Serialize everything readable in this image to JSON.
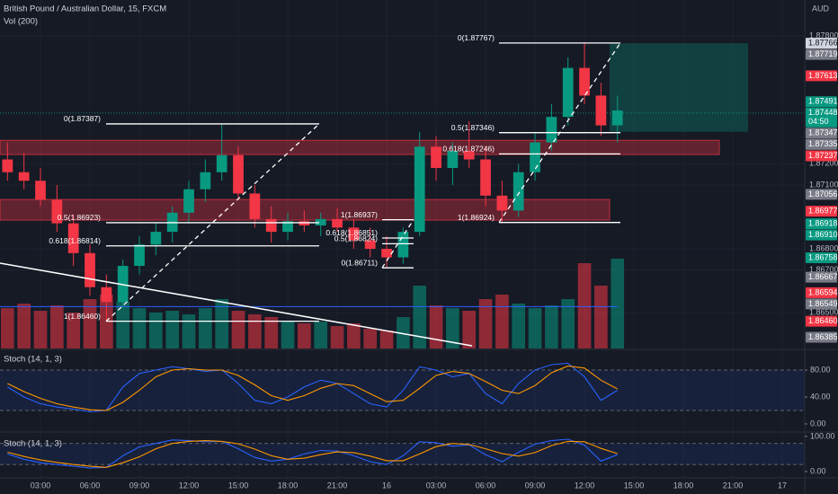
{
  "header": {
    "symbol": "British Pound / Australian Dollar, 15, FXCM",
    "volume": "Vol (200)",
    "currency": "AUD"
  },
  "chart_data": [
    {
      "type": "candlestick",
      "x": [
        1,
        2,
        3,
        4,
        5,
        6,
        7,
        8,
        9,
        10,
        11,
        12,
        13,
        14,
        15,
        16,
        17,
        18,
        19,
        20,
        21,
        22,
        23,
        24,
        25,
        26,
        27,
        28,
        29,
        30,
        31,
        32,
        33,
        34,
        35,
        36,
        37,
        38
      ],
      "open": [
        1.8722,
        1.8716,
        1.8712,
        1.8703,
        1.8692,
        1.8678,
        1.8662,
        1.8655,
        1.8672,
        1.8682,
        1.8688,
        1.8697,
        1.8708,
        1.8716,
        1.8724,
        1.8706,
        1.8694,
        1.8688,
        1.8693,
        1.8691,
        1.8694,
        1.869,
        1.8684,
        1.868,
        1.8676,
        1.8688,
        1.8728,
        1.8718,
        1.8726,
        1.8722,
        1.8705,
        1.8698,
        1.8716,
        1.873,
        1.8742,
        1.8765,
        1.8752,
        1.8738
      ],
      "high": [
        1.873,
        1.8725,
        1.8718,
        1.871,
        1.8696,
        1.8682,
        1.8668,
        1.8675,
        1.8686,
        1.8692,
        1.87,
        1.8712,
        1.8722,
        1.8739,
        1.8728,
        1.871,
        1.87,
        1.8697,
        1.8698,
        1.8697,
        1.8699,
        1.8694,
        1.869,
        1.8686,
        1.869,
        1.8735,
        1.8733,
        1.873,
        1.874,
        1.8728,
        1.8712,
        1.872,
        1.8735,
        1.8748,
        1.877,
        1.8777,
        1.8758,
        1.8752
      ],
      "low": [
        1.8712,
        1.8708,
        1.87,
        1.8688,
        1.8672,
        1.8658,
        1.8646,
        1.8652,
        1.8668,
        1.8677,
        1.8683,
        1.8692,
        1.8702,
        1.8712,
        1.8703,
        1.869,
        1.8683,
        1.8684,
        1.8688,
        1.8686,
        1.8688,
        1.868,
        1.8676,
        1.8671,
        1.8673,
        1.8686,
        1.8712,
        1.871,
        1.8718,
        1.87,
        1.8692,
        1.8695,
        1.8712,
        1.8726,
        1.8738,
        1.8748,
        1.8733,
        1.873
      ],
      "close": [
        1.8716,
        1.8712,
        1.8703,
        1.8692,
        1.8678,
        1.8662,
        1.8655,
        1.8672,
        1.8682,
        1.8688,
        1.8697,
        1.8708,
        1.8716,
        1.8724,
        1.8706,
        1.8694,
        1.8688,
        1.8693,
        1.8691,
        1.8694,
        1.869,
        1.8684,
        1.868,
        1.8676,
        1.8688,
        1.8728,
        1.8718,
        1.8726,
        1.8722,
        1.8705,
        1.8698,
        1.8716,
        1.873,
        1.8742,
        1.8765,
        1.8752,
        1.8738,
        1.8745
      ],
      "volume": [
        45,
        50,
        42,
        48,
        40,
        55,
        60,
        52,
        45,
        40,
        42,
        38,
        45,
        55,
        42,
        38,
        35,
        30,
        28,
        30,
        25,
        28,
        22,
        20,
        35,
        70,
        48,
        45,
        42,
        55,
        60,
        50,
        45,
        48,
        55,
        95,
        70,
        100
      ],
      "vlim": [
        0,
        120
      ],
      "up_color": "#089981",
      "down_color": "#f23645",
      "xlim": [
        0.545,
        49.36
      ],
      "xticks": [
        {
          "value": 3,
          "label": "03:00"
        },
        {
          "value": 6,
          "label": "06:00"
        },
        {
          "value": 9,
          "label": "09:00"
        },
        {
          "value": 12,
          "label": "12:00"
        },
        {
          "value": 15,
          "label": "15:00"
        },
        {
          "value": 18,
          "label": "18:00"
        },
        {
          "value": 21,
          "label": "21:00"
        },
        {
          "value": 24,
          "label": "16"
        },
        {
          "value": 27,
          "label": "03:00"
        },
        {
          "value": 30,
          "label": "06:00"
        },
        {
          "value": 33,
          "label": "09:00"
        },
        {
          "value": 36,
          "label": "12:00"
        },
        {
          "value": 39,
          "label": "15:00"
        },
        {
          "value": 42,
          "label": "18:00"
        },
        {
          "value": 45,
          "label": "21:00"
        },
        {
          "value": 48,
          "label": "17"
        }
      ],
      "ylim": [
        1.86332,
        1.87969
      ],
      "yticks": [
        {
          "value": 1.878,
          "label": "1.87800"
        },
        {
          "value": 1.872,
          "label": "1.87200"
        },
        {
          "value": 1.871,
          "label": "1.87100"
        },
        {
          "value": 1.868,
          "label": "1.86800"
        },
        {
          "value": 1.867,
          "label": "1.86700"
        },
        {
          "value": 1.865,
          "label": "1.86500"
        }
      ],
      "price_tags": [
        {
          "value": 1.87766,
          "label": "1.87766",
          "color": "#d1d4dc"
        },
        {
          "value": 1.87719,
          "label": "1.87719",
          "color": "#787b86"
        },
        {
          "value": 1.87613,
          "label": "1.87613",
          "color": "#f23645"
        },
        {
          "value": 1.87491,
          "label": "1.87491",
          "color": "#089981"
        },
        {
          "value": 1.87448,
          "label": "1.87448",
          "color": "#089981"
        },
        {
          "value": 1.87347,
          "label": "1.87347",
          "color": "#787b86"
        },
        {
          "value": 1.87335,
          "label": "1.87335",
          "color": "#787b86"
        },
        {
          "value": 1.87237,
          "label": "1.87237",
          "color": "#f23645"
        },
        {
          "value": 1.87056,
          "label": "1.87056",
          "color": "#787b86"
        },
        {
          "value": 1.86977,
          "label": "1.86977",
          "color": "#f23645"
        },
        {
          "value": 1.86918,
          "label": "1.86918",
          "color": "#089981"
        },
        {
          "value": 1.8691,
          "label": "1.86910",
          "color": "#089981"
        },
        {
          "value": 1.86758,
          "label": "1.86758",
          "color": "#089981"
        },
        {
          "value": 1.86667,
          "label": "1.86667",
          "color": "#787b86"
        },
        {
          "value": 1.86594,
          "label": "1.86594",
          "color": "#f23645"
        },
        {
          "value": 1.86549,
          "label": "1.86549",
          "color": "#787b86"
        },
        {
          "value": 1.8646,
          "label": "1.86460",
          "color": "#f23645"
        },
        {
          "value": 1.86385,
          "label": "1.86385",
          "color": "#787b86"
        }
      ],
      "countdown": "04:50",
      "fib": [
        {
          "levels": [
            {
              "label": "0(1.87387)",
              "value": 1.87387
            },
            {
              "label": "0.5(1.86923)",
              "value": 1.86923
            },
            {
              "label": "0.618(1.86814)",
              "value": 1.86814
            },
            {
              "label": "1(1.86460)",
              "value": 1.8646
            }
          ]
        },
        {
          "levels": [
            {
              "label": "1(1.86937)",
              "value": 1.86937
            },
            {
              "label": "0.618(1.86851)",
              "value": 1.86851
            },
            {
              "label": "0.5(1.86824)",
              "value": 1.86824
            },
            {
              "label": "0(1.86711)",
              "value": 1.86711
            }
          ]
        },
        {
          "levels": [
            {
              "label": "0(1.87767)",
              "value": 1.87767
            },
            {
              "label": "0.5(1.87346)",
              "value": 1.87346
            },
            {
              "label": "0.618(1.87246)",
              "value": 1.87246
            },
            {
              "label": "1(1.86924)",
              "value": 1.86924
            }
          ]
        }
      ],
      "zones": [
        {
          "top": 1.8731,
          "bottom": 1.87243
        },
        {
          "top": 1.87032,
          "bottom": 1.86935
        }
      ],
      "target": {
        "top": 1.87766,
        "bottom": 1.8735
      }
    },
    {
      "type": "line",
      "title": "Stoch (14, 1, 3)",
      "x": [
        1,
        2,
        3,
        4,
        5,
        6,
        7,
        8,
        9,
        10,
        11,
        12,
        13,
        14,
        15,
        16,
        17,
        18,
        19,
        20,
        21,
        22,
        23,
        24,
        25,
        26,
        27,
        28,
        29,
        30,
        31,
        32,
        33,
        34,
        35,
        36,
        37,
        38
      ],
      "series": [
        {
          "color": "#2962ff",
          "values": [
            55,
            40,
            30,
            25,
            22,
            18,
            20,
            55,
            75,
            80,
            85,
            82,
            78,
            80,
            60,
            35,
            30,
            40,
            55,
            65,
            60,
            45,
            30,
            25,
            50,
            85,
            80,
            70,
            75,
            45,
            30,
            60,
            80,
            88,
            90,
            70,
            35,
            50
          ]
        },
        {
          "color": "#ff9800",
          "values": [
            60,
            48,
            38,
            30,
            25,
            21,
            20,
            32,
            50,
            70,
            80,
            82,
            80,
            80,
            72,
            58,
            42,
            35,
            42,
            53,
            60,
            57,
            45,
            33,
            35,
            53,
            72,
            78,
            75,
            63,
            50,
            45,
            57,
            76,
            86,
            83,
            65,
            52
          ]
        }
      ],
      "bands": [
        20,
        80
      ],
      "ylim": [
        -10.7,
        102.7
      ],
      "yticks": [
        {
          "value": 80,
          "label": "80.00"
        },
        {
          "value": 40,
          "label": "40.00"
        },
        {
          "value": 0,
          "label": "0.00"
        }
      ]
    },
    {
      "type": "line",
      "title": "Stoch (14, 1, 3)",
      "x": [
        1,
        2,
        3,
        4,
        5,
        6,
        7,
        8,
        9,
        10,
        11,
        12,
        13,
        14,
        15,
        16,
        17,
        18,
        19,
        20,
        21,
        22,
        23,
        24,
        25,
        26,
        27,
        28,
        29,
        30,
        31,
        32,
        33,
        34,
        35,
        36,
        37,
        38
      ],
      "series": [
        {
          "color": "#2962ff",
          "values": [
            50,
            35,
            25,
            20,
            15,
            10,
            12,
            45,
            70,
            80,
            90,
            88,
            85,
            86,
            65,
            40,
            30,
            35,
            50,
            60,
            58,
            45,
            28,
            20,
            45,
            85,
            82,
            72,
            76,
            48,
            28,
            55,
            78,
            88,
            92,
            75,
            30,
            48
          ]
        },
        {
          "color": "#ff9800",
          "values": [
            55,
            43,
            33,
            26,
            20,
            15,
            12,
            25,
            42,
            65,
            80,
            86,
            88,
            86,
            79,
            64,
            45,
            35,
            38,
            48,
            56,
            54,
            44,
            31,
            31,
            50,
            71,
            80,
            77,
            65,
            51,
            44,
            54,
            74,
            86,
            85,
            66,
            51
          ]
        }
      ],
      "bands": [
        20,
        80
      ],
      "ylim": [
        -18,
        110
      ],
      "yticks": [
        {
          "value": 100,
          "label": "100.00"
        },
        {
          "value": 0,
          "label": "0.00"
        }
      ]
    }
  ]
}
